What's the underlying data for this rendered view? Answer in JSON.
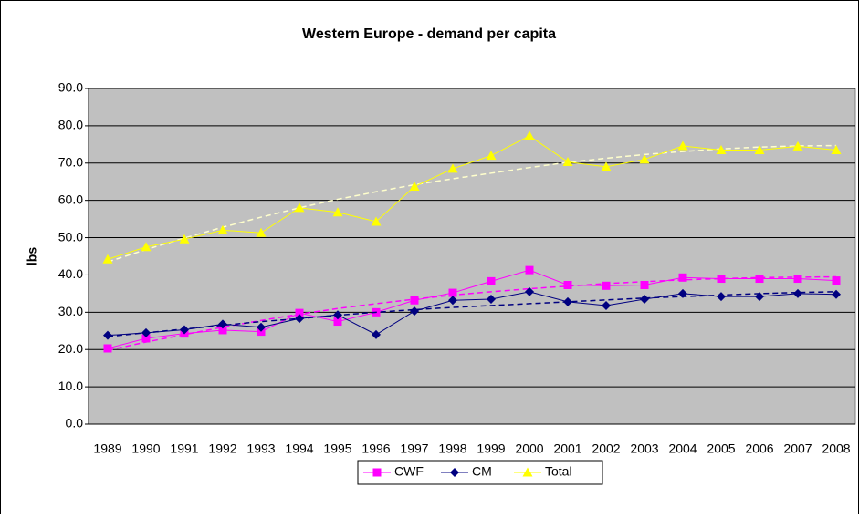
{
  "chart_data": {
    "type": "line",
    "title": "Western Europe - demand per capita",
    "y_label": "lbs",
    "categories": [
      "1989",
      "1990",
      "1991",
      "1992",
      "1993",
      "1994",
      "1995",
      "1996",
      "1997",
      "1998",
      "1999",
      "2000",
      "2001",
      "2002",
      "2003",
      "2004",
      "2005",
      "2006",
      "2007",
      "2008"
    ],
    "series": [
      {
        "name": "CWF",
        "color": "#ff00ff",
        "marker": "square",
        "trend_color": "#ff00ff",
        "values": [
          20.3,
          23.0,
          24.3,
          25.2,
          24.8,
          29.8,
          27.5,
          30.0,
          33.2,
          35.2,
          38.3,
          41.3,
          37.3,
          37.1,
          37.3,
          39.3,
          39.0,
          39.0,
          39.0,
          38.5
        ],
        "trendline": [
          19.8,
          22.0,
          24.0,
          26.0,
          27.8,
          29.5,
          31.0,
          32.3,
          33.5,
          34.6,
          35.5,
          36.3,
          37.0,
          37.7,
          38.2,
          38.7,
          39.0,
          39.3,
          39.4,
          39.5
        ]
      },
      {
        "name": "CM",
        "color": "#000080",
        "marker": "diamond",
        "trend_color": "#000080",
        "values": [
          23.8,
          24.5,
          25.3,
          26.8,
          26.0,
          28.3,
          29.3,
          24.0,
          30.3,
          33.2,
          33.5,
          35.5,
          32.8,
          31.8,
          33.5,
          35.0,
          34.2,
          34.2,
          35.0,
          34.8
        ],
        "trendline": [
          23.5,
          24.5,
          25.5,
          26.5,
          27.5,
          28.3,
          29.2,
          30.0,
          30.7,
          31.3,
          31.8,
          32.3,
          32.8,
          33.3,
          33.8,
          34.2,
          34.6,
          35.0,
          35.3,
          35.5
        ]
      },
      {
        "name": "Total",
        "color": "#ffff00",
        "marker": "triangle",
        "trend_color": "#ffffcc",
        "values": [
          44.2,
          47.5,
          49.6,
          52.0,
          51.3,
          58.0,
          56.8,
          54.3,
          63.7,
          68.5,
          72.0,
          77.3,
          70.3,
          69.0,
          71.0,
          74.6,
          73.5,
          73.5,
          74.5,
          73.5
        ],
        "trendline": [
          43.5,
          46.8,
          49.9,
          52.8,
          55.5,
          58.0,
          60.3,
          62.3,
          64.2,
          65.8,
          67.3,
          68.8,
          70.2,
          71.3,
          72.3,
          73.1,
          73.8,
          74.3,
          74.6,
          74.7
        ]
      }
    ],
    "ylim": [
      0,
      90
    ],
    "yticks": [
      {
        "value": 0,
        "label": "0.0"
      },
      {
        "value": 10,
        "label": "10.0"
      },
      {
        "value": 20,
        "label": "20.0"
      },
      {
        "value": 30,
        "label": "30.0"
      },
      {
        "value": 40,
        "label": "40.0"
      },
      {
        "value": 50,
        "label": "50.0"
      },
      {
        "value": 60,
        "label": "60.0"
      },
      {
        "value": 70,
        "label": "70.0"
      },
      {
        "value": 80,
        "label": "80.0"
      },
      {
        "value": 90,
        "label": "90.0"
      }
    ],
    "grid": true,
    "plot_background": "#c0c0c0",
    "legend": "bottom"
  }
}
